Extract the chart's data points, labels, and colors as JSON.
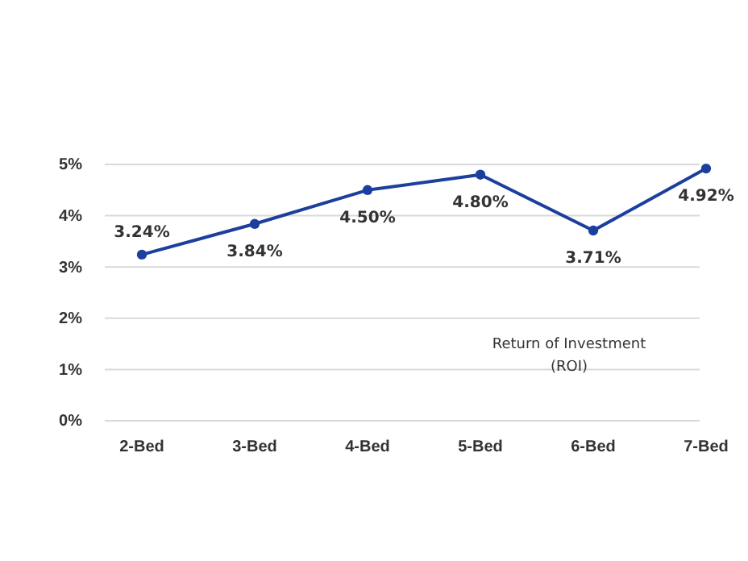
{
  "chart_data": {
    "type": "line",
    "categories": [
      "2-Bed",
      "3-Bed",
      "4-Bed",
      "5-Bed",
      "6-Bed",
      "7-Bed"
    ],
    "series": [
      {
        "name": "Return of Investment (ROI)",
        "color": "#1c3f9e",
        "values": [
          3.24,
          3.84,
          4.5,
          4.8,
          3.71,
          4.92
        ],
        "value_labels": [
          "3.24%",
          "3.84%",
          "4.50%",
          "4.80%",
          "3.71%",
          "4.92%"
        ]
      }
    ],
    "ylim": [
      0,
      5
    ],
    "yticks": [
      {
        "value": 0,
        "label": "0%"
      },
      {
        "value": 1,
        "label": "1%"
      },
      {
        "value": 2,
        "label": "2%"
      },
      {
        "value": 3,
        "label": "3%"
      },
      {
        "value": 4,
        "label": "4%"
      },
      {
        "value": 5,
        "label": "5%"
      }
    ],
    "grid": "y",
    "marker": "circle",
    "line_style": "solid",
    "legend": "right"
  }
}
